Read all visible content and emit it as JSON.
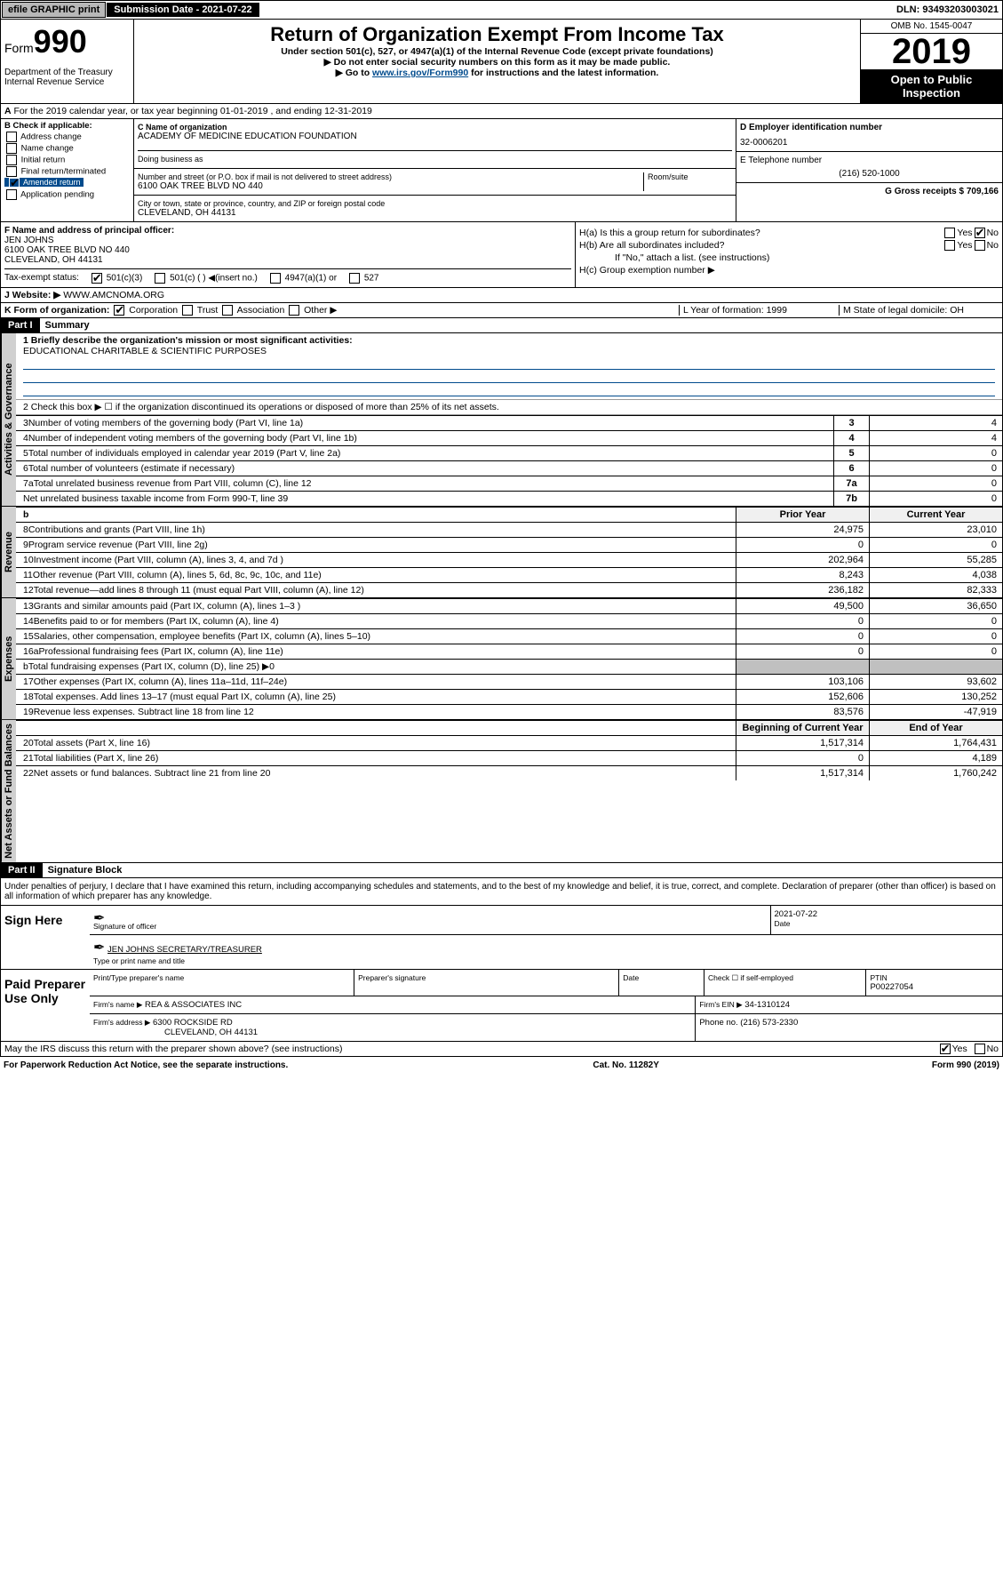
{
  "topbar": {
    "efile": "efile GRAPHIC print",
    "subdate_label": "Submission Date - 2021-07-22",
    "dln": "DLN: 93493203003021"
  },
  "header": {
    "form_word": "Form",
    "form_num": "990",
    "dept1": "Department of the Treasury",
    "dept2": "Internal Revenue Service",
    "title": "Return of Organization Exempt From Income Tax",
    "sub1": "Under section 501(c), 527, or 4947(a)(1) of the Internal Revenue Code (except private foundations)",
    "sub2": "▶ Do not enter social security numbers on this form as it may be made public.",
    "sub3_pre": "▶ Go to ",
    "sub3_link": "www.irs.gov/Form990",
    "sub3_post": " for instructions and the latest information.",
    "omb": "OMB No. 1545-0047",
    "year": "2019",
    "inspection": "Open to Public Inspection"
  },
  "line_a": "For the 2019 calendar year, or tax year beginning 01-01-2019   , and ending 12-31-2019",
  "box_b": {
    "label": "B Check if applicable:",
    "items": [
      "Address change",
      "Name change",
      "Initial return",
      "Final return/terminated",
      "Amended return",
      "Application pending"
    ],
    "amended_checked": true
  },
  "box_c": {
    "label": "C Name of organization",
    "name": "ACADEMY OF MEDICINE EDUCATION FOUNDATION",
    "dba_label": "Doing business as",
    "addr_label": "Number and street (or P.O. box if mail is not delivered to street address)",
    "room_label": "Room/suite",
    "addr": "6100 OAK TREE BLVD NO 440",
    "city_label": "City or town, state or province, country, and ZIP or foreign postal code",
    "city": "CLEVELAND, OH  44131"
  },
  "box_d": {
    "label": "D Employer identification number",
    "val": "32-0006201"
  },
  "box_e": {
    "label": "E Telephone number",
    "val": "(216) 520-1000"
  },
  "box_g": {
    "label": "G Gross receipts $ 709,166"
  },
  "box_f": {
    "label": "F  Name and address of principal officer:",
    "name": "JEN JOHNS",
    "addr1": "6100 OAK TREE BLVD NO 440",
    "addr2": "CLEVELAND, OH  44131"
  },
  "box_h": {
    "a": "H(a)  Is this a group return for subordinates?",
    "b": "H(b)  Are all subordinates included?",
    "b_note": "If \"No,\" attach a list. (see instructions)",
    "c": "H(c)  Group exemption number ▶",
    "yes": "Yes",
    "no": "No"
  },
  "box_i": {
    "label": "Tax-exempt status:",
    "opts": [
      "501(c)(3)",
      "501(c) (  ) ◀(insert no.)",
      "4947(a)(1) or",
      "527"
    ]
  },
  "box_j": {
    "label": "J",
    "text": "Website: ▶",
    "val": "WWW.AMCNOMA.ORG"
  },
  "box_k": {
    "label": "K Form of organization:",
    "opts": [
      "Corporation",
      "Trust",
      "Association",
      "Other ▶"
    ]
  },
  "box_l": {
    "label": "L Year of formation: 1999"
  },
  "box_m": {
    "label": "M State of legal domicile: OH"
  },
  "part1": {
    "tag": "Part I",
    "title": "Summary",
    "line1_label": "1  Briefly describe the organization's mission or most significant activities:",
    "line1_val": "EDUCATIONAL CHARITABLE & SCIENTIFIC PURPOSES",
    "line2": "2   Check this box ▶ ☐  if the organization discontinued its operations or disposed of more than 25% of its net assets.",
    "vtab1": "Activities & Governance",
    "vtab2": "Revenue",
    "vtab3": "Expenses",
    "vtab4": "Net Assets or Fund Balances",
    "rows_single": [
      {
        "n": "3",
        "t": "Number of voting members of the governing body (Part VI, line 1a)",
        "box": "3",
        "v": "4"
      },
      {
        "n": "4",
        "t": "Number of independent voting members of the governing body (Part VI, line 1b)",
        "box": "4",
        "v": "4"
      },
      {
        "n": "5",
        "t": "Total number of individuals employed in calendar year 2019 (Part V, line 2a)",
        "box": "5",
        "v": "0"
      },
      {
        "n": "6",
        "t": "Total number of volunteers (estimate if necessary)",
        "box": "6",
        "v": "0"
      },
      {
        "n": "7a",
        "t": "Total unrelated business revenue from Part VIII, column (C), line 12",
        "box": "7a",
        "v": "0"
      },
      {
        "n": "",
        "t": "Net unrelated business taxable income from Form 990-T, line 39",
        "box": "7b",
        "v": "0"
      }
    ],
    "col_headers": {
      "b": "b",
      "py": "Prior Year",
      "cy": "Current Year"
    },
    "rows_rev": [
      {
        "n": "8",
        "t": "Contributions and grants (Part VIII, line 1h)",
        "py": "24,975",
        "cy": "23,010"
      },
      {
        "n": "9",
        "t": "Program service revenue (Part VIII, line 2g)",
        "py": "0",
        "cy": "0"
      },
      {
        "n": "10",
        "t": "Investment income (Part VIII, column (A), lines 3, 4, and 7d )",
        "py": "202,964",
        "cy": "55,285"
      },
      {
        "n": "11",
        "t": "Other revenue (Part VIII, column (A), lines 5, 6d, 8c, 9c, 10c, and 11e)",
        "py": "8,243",
        "cy": "4,038"
      },
      {
        "n": "12",
        "t": "Total revenue—add lines 8 through 11 (must equal Part VIII, column (A), line 12)",
        "py": "236,182",
        "cy": "82,333"
      }
    ],
    "rows_exp": [
      {
        "n": "13",
        "t": "Grants and similar amounts paid (Part IX, column (A), lines 1–3 )",
        "py": "49,500",
        "cy": "36,650"
      },
      {
        "n": "14",
        "t": "Benefits paid to or for members (Part IX, column (A), line 4)",
        "py": "0",
        "cy": "0"
      },
      {
        "n": "15",
        "t": "Salaries, other compensation, employee benefits (Part IX, column (A), lines 5–10)",
        "py": "0",
        "cy": "0"
      },
      {
        "n": "16a",
        "t": "Professional fundraising fees (Part IX, column (A), line 11e)",
        "py": "0",
        "cy": "0"
      },
      {
        "n": "b",
        "t": "Total fundraising expenses (Part IX, column (D), line 25) ▶0",
        "py": "",
        "cy": "",
        "shade": true
      },
      {
        "n": "17",
        "t": "Other expenses (Part IX, column (A), lines 11a–11d, 11f–24e)",
        "py": "103,106",
        "cy": "93,602"
      },
      {
        "n": "18",
        "t": "Total expenses. Add lines 13–17 (must equal Part IX, column (A), line 25)",
        "py": "152,606",
        "cy": "130,252"
      },
      {
        "n": "19",
        "t": "Revenue less expenses. Subtract line 18 from line 12",
        "py": "83,576",
        "cy": "-47,919"
      }
    ],
    "col_headers2": {
      "py": "Beginning of Current Year",
      "cy": "End of Year"
    },
    "rows_net": [
      {
        "n": "20",
        "t": "Total assets (Part X, line 16)",
        "py": "1,517,314",
        "cy": "1,764,431"
      },
      {
        "n": "21",
        "t": "Total liabilities (Part X, line 26)",
        "py": "0",
        "cy": "4,189"
      },
      {
        "n": "22",
        "t": "Net assets or fund balances. Subtract line 21 from line 20",
        "py": "1,517,314",
        "cy": "1,760,242"
      }
    ]
  },
  "part2": {
    "tag": "Part II",
    "title": "Signature Block",
    "decl": "Under penalties of perjury, I declare that I have examined this return, including accompanying schedules and statements, and to the best of my knowledge and belief, it is true, correct, and complete. Declaration of preparer (other than officer) is based on all information of which preparer has any knowledge.",
    "sign_here": "Sign Here",
    "sig_officer": "Signature of officer",
    "sig_date": "2021-07-22",
    "date_lbl": "Date",
    "name_title": "JEN JOHNS  SECRETARY/TREASURER",
    "name_lbl": "Type or print name and title",
    "paid": "Paid Preparer Use Only",
    "prep_name_lbl": "Print/Type preparer's name",
    "prep_sig_lbl": "Preparer's signature",
    "check_self": "Check ☐ if self-employed",
    "ptin_lbl": "PTIN",
    "ptin": "P00227054",
    "firm_name_lbl": "Firm's name   ▶",
    "firm_name": "REA & ASSOCIATES INC",
    "firm_ein_lbl": "Firm's EIN ▶",
    "firm_ein": "34-1310124",
    "firm_addr_lbl": "Firm's address ▶",
    "firm_addr1": "6300 ROCKSIDE RD",
    "firm_addr2": "CLEVELAND, OH  44131",
    "phone_lbl": "Phone no. (216) 573-2330",
    "discuss": "May the IRS discuss this return with the preparer shown above? (see instructions)",
    "yes": "Yes",
    "no": "No"
  },
  "footer": {
    "left": "For Paperwork Reduction Act Notice, see the separate instructions.",
    "mid": "Cat. No. 11282Y",
    "right": "Form 990 (2019)"
  }
}
